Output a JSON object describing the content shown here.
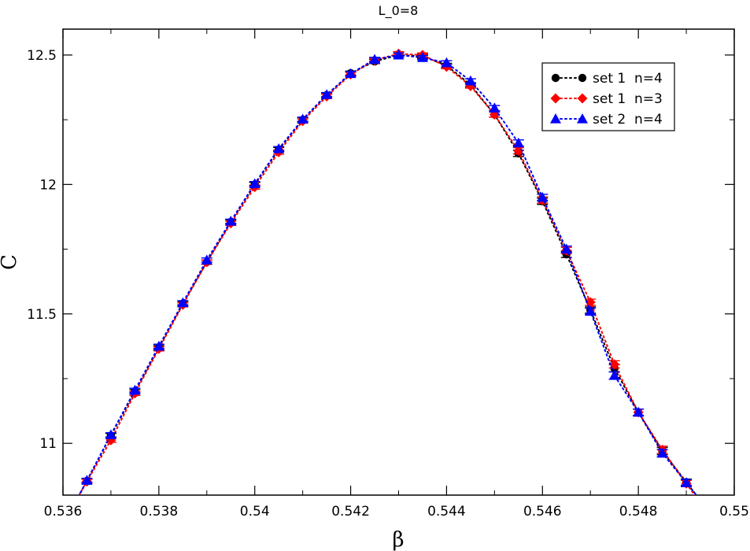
{
  "chart_data": {
    "type": "line",
    "title": "L_0=8",
    "xlabel": "β",
    "ylabel": "C",
    "xlim": [
      0.536,
      0.55
    ],
    "ylim": [
      10.8,
      12.6
    ],
    "xticks": [
      0.536,
      0.538,
      0.54,
      0.542,
      0.544,
      0.546,
      0.548,
      0.55
    ],
    "xtick_labels": [
      "0.536",
      "0.538",
      "0.54",
      "0.542",
      "0.544",
      "0.546",
      "0.548",
      "0.55"
    ],
    "yticks": [
      11,
      11.5,
      12,
      12.5
    ],
    "ytick_labels": [
      "11",
      "11.5",
      "12",
      "12.5"
    ],
    "grid": false,
    "legend_position": "top-right",
    "x": [
      0.5365,
      0.537,
      0.5375,
      0.538,
      0.5385,
      0.539,
      0.5395,
      0.54,
      0.5405,
      0.541,
      0.5415,
      0.542,
      0.5425,
      0.543,
      0.5435,
      0.544,
      0.5445,
      0.545,
      0.5455,
      0.546,
      0.5465,
      0.547,
      0.5475,
      0.548,
      0.5485,
      0.549
    ],
    "series": [
      {
        "name": "set 1  n=4",
        "color": "#000000",
        "marker": "circle",
        "values": [
          10.855,
          11.03,
          11.2,
          11.37,
          11.54,
          11.7,
          11.855,
          12.0,
          12.135,
          12.25,
          12.345,
          12.43,
          12.475,
          12.5,
          12.495,
          12.46,
          12.385,
          12.27,
          12.12,
          11.935,
          11.73,
          11.515,
          11.29,
          11.12,
          10.97,
          10.85
        ],
        "errors": [
          0.008,
          0.008,
          0.008,
          0.008,
          0.008,
          0.008,
          0.008,
          0.008,
          0.008,
          0.008,
          0.008,
          0.008,
          0.008,
          0.008,
          0.008,
          0.008,
          0.008,
          0.01,
          0.012,
          0.012,
          0.012,
          0.012,
          0.014,
          0.012,
          0.014,
          0.012
        ]
      },
      {
        "name": "set 1  n=3",
        "color": "#ff0000",
        "marker": "diamond",
        "values": [
          10.853,
          11.012,
          11.193,
          11.365,
          11.535,
          11.7,
          11.85,
          11.99,
          12.125,
          12.245,
          12.34,
          12.425,
          12.48,
          12.505,
          12.5,
          12.455,
          12.38,
          12.27,
          12.13,
          11.94,
          11.745,
          11.545,
          11.305,
          11.12,
          10.975,
          10.845
        ],
        "errors": [
          0.008,
          0.008,
          0.008,
          0.008,
          0.008,
          0.008,
          0.008,
          0.008,
          0.008,
          0.008,
          0.008,
          0.008,
          0.008,
          0.008,
          0.008,
          0.008,
          0.008,
          0.01,
          0.012,
          0.012,
          0.012,
          0.012,
          0.014,
          0.012,
          0.014,
          0.012
        ]
      },
      {
        "name": "set 2  n=4",
        "color": "#0000ff",
        "marker": "triangle",
        "values": [
          10.857,
          11.033,
          11.205,
          11.375,
          11.543,
          11.708,
          11.858,
          12.003,
          12.138,
          12.252,
          12.347,
          12.428,
          12.483,
          12.5,
          12.49,
          12.47,
          12.4,
          12.295,
          12.16,
          11.95,
          11.75,
          11.51,
          11.262,
          11.12,
          10.962,
          10.848
        ],
        "errors": [
          0.008,
          0.008,
          0.008,
          0.008,
          0.008,
          0.008,
          0.008,
          0.008,
          0.008,
          0.008,
          0.008,
          0.008,
          0.008,
          0.008,
          0.008,
          0.008,
          0.008,
          0.01,
          0.012,
          0.012,
          0.012,
          0.012,
          0.014,
          0.012,
          0.014,
          0.012
        ]
      }
    ]
  }
}
